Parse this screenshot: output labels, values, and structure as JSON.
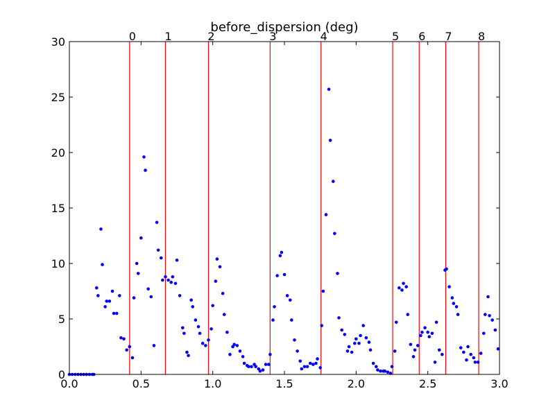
{
  "chart_data": {
    "type": "scatter",
    "title": "before_dispersion (deg)",
    "xlim": [
      0.0,
      3.0
    ],
    "ylim": [
      0,
      30
    ],
    "x_ticks": [
      "0.0",
      "0.5",
      "1.0",
      "1.5",
      "2.0",
      "2.5",
      "3.0"
    ],
    "y_ticks": [
      "0",
      "5",
      "10",
      "15",
      "20",
      "25",
      "30"
    ],
    "grid": false,
    "point_color": "#0000ff",
    "vline_color": "#ff0000",
    "vlines": [
      {
        "label": "0",
        "x": 0.42
      },
      {
        "label": "1",
        "x": 0.67
      },
      {
        "label": "2",
        "x": 0.97
      },
      {
        "label": "3",
        "x": 1.4
      },
      {
        "label": "4",
        "x": 1.755
      },
      {
        "label": "5",
        "x": 2.255
      },
      {
        "label": "6",
        "x": 2.44
      },
      {
        "label": "7",
        "x": 2.625
      },
      {
        "label": "8",
        "x": 2.855
      }
    ],
    "points": [
      [
        0.0,
        0.0
      ],
      [
        0.02,
        0.0
      ],
      [
        0.04,
        0.0
      ],
      [
        0.06,
        0.0
      ],
      [
        0.08,
        0.0
      ],
      [
        0.1,
        0.0
      ],
      [
        0.12,
        0.0
      ],
      [
        0.14,
        0.0
      ],
      [
        0.16,
        0.0
      ],
      [
        0.17,
        0.0
      ],
      [
        0.19,
        7.8
      ],
      [
        0.2,
        7.1
      ],
      [
        0.22,
        13.1
      ],
      [
        0.23,
        9.9
      ],
      [
        0.25,
        6.1
      ],
      [
        0.26,
        6.6
      ],
      [
        0.28,
        6.6
      ],
      [
        0.3,
        7.5
      ],
      [
        0.31,
        5.5
      ],
      [
        0.33,
        5.5
      ],
      [
        0.35,
        7.1
      ],
      [
        0.36,
        3.3
      ],
      [
        0.38,
        3.2
      ],
      [
        0.4,
        2.2
      ],
      [
        0.42,
        2.5
      ],
      [
        0.44,
        1.5
      ],
      [
        0.45,
        6.9
      ],
      [
        0.47,
        10.0
      ],
      [
        0.48,
        9.1
      ],
      [
        0.5,
        12.3
      ],
      [
        0.52,
        19.6
      ],
      [
        0.53,
        18.4
      ],
      [
        0.55,
        7.7
      ],
      [
        0.57,
        7.0
      ],
      [
        0.59,
        2.6
      ],
      [
        0.61,
        13.7
      ],
      [
        0.62,
        11.2
      ],
      [
        0.64,
        10.5
      ],
      [
        0.65,
        8.5
      ],
      [
        0.67,
        8.8
      ],
      [
        0.69,
        8.5
      ],
      [
        0.71,
        8.3
      ],
      [
        0.72,
        8.8
      ],
      [
        0.74,
        8.2
      ],
      [
        0.75,
        10.3
      ],
      [
        0.77,
        7.1
      ],
      [
        0.79,
        4.2
      ],
      [
        0.8,
        3.7
      ],
      [
        0.82,
        2.0
      ],
      [
        0.83,
        1.7
      ],
      [
        0.85,
        6.7
      ],
      [
        0.86,
        6.1
      ],
      [
        0.88,
        4.9
      ],
      [
        0.9,
        4.3
      ],
      [
        0.91,
        3.7
      ],
      [
        0.93,
        2.8
      ],
      [
        0.95,
        2.6
      ],
      [
        0.97,
        3.1
      ],
      [
        0.99,
        4.1
      ],
      [
        1.0,
        6.2
      ],
      [
        1.02,
        8.4
      ],
      [
        1.03,
        10.4
      ],
      [
        1.05,
        9.7
      ],
      [
        1.07,
        7.3
      ],
      [
        1.08,
        5.4
      ],
      [
        1.1,
        3.8
      ],
      [
        1.12,
        1.8
      ],
      [
        1.14,
        2.5
      ],
      [
        1.15,
        2.7
      ],
      [
        1.17,
        2.6
      ],
      [
        1.19,
        2.1
      ],
      [
        1.21,
        1.6
      ],
      [
        1.22,
        1.0
      ],
      [
        1.24,
        0.8
      ],
      [
        1.25,
        0.7
      ],
      [
        1.27,
        0.7
      ],
      [
        1.29,
        0.9
      ],
      [
        1.3,
        0.7
      ],
      [
        1.32,
        0.5
      ],
      [
        1.33,
        0.3
      ],
      [
        1.35,
        0.4
      ],
      [
        1.37,
        0.9
      ],
      [
        1.39,
        0.9
      ],
      [
        1.4,
        1.8
      ],
      [
        1.42,
        4.9
      ],
      [
        1.43,
        6.1
      ],
      [
        1.45,
        8.9
      ],
      [
        1.47,
        10.7
      ],
      [
        1.48,
        11.0
      ],
      [
        1.5,
        9.0
      ],
      [
        1.52,
        7.1
      ],
      [
        1.54,
        6.7
      ],
      [
        1.55,
        4.9
      ],
      [
        1.57,
        3.1
      ],
      [
        1.59,
        2.1
      ],
      [
        1.61,
        1.2
      ],
      [
        1.62,
        0.5
      ],
      [
        1.64,
        0.7
      ],
      [
        1.66,
        0.7
      ],
      [
        1.68,
        1.0
      ],
      [
        1.7,
        0.9
      ],
      [
        1.72,
        1.0
      ],
      [
        1.73,
        1.4
      ],
      [
        1.75,
        0.6
      ],
      [
        1.76,
        4.4
      ],
      [
        1.77,
        7.5
      ],
      [
        1.79,
        14.4
      ],
      [
        1.81,
        25.7
      ],
      [
        1.82,
        21.1
      ],
      [
        1.84,
        17.4
      ],
      [
        1.85,
        12.7
      ],
      [
        1.87,
        9.1
      ],
      [
        1.88,
        5.1
      ],
      [
        1.9,
        4.0
      ],
      [
        1.92,
        3.6
      ],
      [
        1.94,
        2.1
      ],
      [
        1.95,
        2.5
      ],
      [
        1.97,
        2.0
      ],
      [
        1.99,
        2.8
      ],
      [
        2.0,
        3.2
      ],
      [
        2.02,
        2.8
      ],
      [
        2.03,
        3.5
      ],
      [
        2.05,
        4.4
      ],
      [
        2.07,
        3.3
      ],
      [
        2.09,
        2.9
      ],
      [
        2.1,
        2.2
      ],
      [
        2.12,
        1.0
      ],
      [
        2.14,
        0.7
      ],
      [
        2.15,
        0.4
      ],
      [
        2.17,
        0.3
      ],
      [
        2.19,
        0.3
      ],
      [
        2.2,
        0.3
      ],
      [
        2.22,
        0.2
      ],
      [
        2.24,
        0.1
      ],
      [
        2.25,
        0.7
      ],
      [
        2.27,
        2.1
      ],
      [
        2.28,
        4.7
      ],
      [
        2.3,
        7.8
      ],
      [
        2.32,
        7.6
      ],
      [
        2.33,
        8.2
      ],
      [
        2.35,
        7.9
      ],
      [
        2.36,
        5.4
      ],
      [
        2.38,
        2.7
      ],
      [
        2.4,
        1.6
      ],
      [
        2.41,
        2.2
      ],
      [
        2.43,
        2.6
      ],
      [
        2.45,
        3.5
      ],
      [
        2.46,
        3.8
      ],
      [
        2.48,
        4.2
      ],
      [
        2.5,
        3.8
      ],
      [
        2.51,
        3.4
      ],
      [
        2.53,
        3.7
      ],
      [
        2.55,
        1.1
      ],
      [
        2.56,
        4.7
      ],
      [
        2.58,
        2.2
      ],
      [
        2.6,
        1.8
      ],
      [
        2.62,
        9.4
      ],
      [
        2.63,
        9.5
      ],
      [
        2.65,
        7.9
      ],
      [
        2.67,
        6.9
      ],
      [
        2.68,
        6.4
      ],
      [
        2.7,
        6.1
      ],
      [
        2.71,
        5.4
      ],
      [
        2.73,
        2.4
      ],
      [
        2.75,
        2.0
      ],
      [
        2.77,
        1.3
      ],
      [
        2.78,
        2.5
      ],
      [
        2.8,
        1.8
      ],
      [
        2.82,
        1.5
      ],
      [
        2.83,
        1.1
      ],
      [
        2.85,
        1.1
      ],
      [
        2.87,
        1.9
      ],
      [
        2.89,
        3.7
      ],
      [
        2.9,
        5.4
      ],
      [
        2.92,
        7.0
      ],
      [
        2.93,
        5.3
      ],
      [
        2.95,
        4.9
      ],
      [
        2.97,
        4.0
      ],
      [
        2.99,
        2.3
      ]
    ]
  }
}
